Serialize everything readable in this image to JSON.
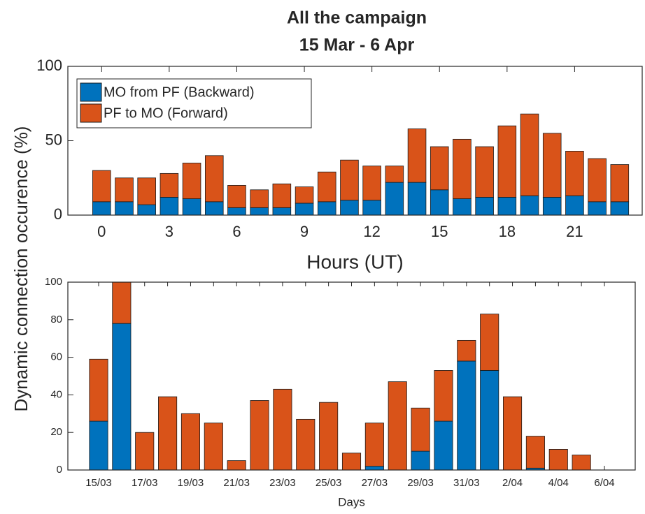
{
  "chart_data": [
    {
      "type": "bar",
      "stacked": true,
      "title": "All the campaign",
      "subtitle": "15 Mar - 6 Apr",
      "ylabel": "Dynamic connection occurence (%)",
      "xlabel": "Hours (UT)",
      "legend": "upper left",
      "x": [
        0,
        1,
        2,
        3,
        4,
        5,
        6,
        7,
        8,
        9,
        10,
        11,
        12,
        13,
        14,
        15,
        16,
        17,
        18,
        19,
        20,
        21,
        22,
        23
      ],
      "xlim": [
        -1.5,
        24
      ],
      "xticks": [
        0,
        3,
        6,
        9,
        12,
        15,
        18,
        21
      ],
      "ylim": [
        0,
        100
      ],
      "yticks": [
        0,
        50,
        100
      ],
      "series": [
        {
          "name": "MO from PF (Backward)",
          "color": "#0072BD",
          "values": [
            9,
            9,
            7,
            12,
            11,
            9,
            5,
            5,
            5,
            8,
            9,
            10,
            10,
            22,
            22,
            17,
            11,
            12,
            12,
            13,
            12,
            13,
            9,
            9
          ]
        },
        {
          "name": "PF to MO (Forward)",
          "color": "#D95319",
          "values": [
            21,
            16,
            18,
            16,
            24,
            31,
            15,
            12,
            16,
            11,
            20,
            27,
            23,
            11,
            36,
            29,
            40,
            34,
            48,
            55,
            43,
            30,
            29,
            25
          ]
        }
      ]
    },
    {
      "type": "bar",
      "stacked": true,
      "xlabel": "Days",
      "categories": [
        "15/03",
        null,
        "17/03",
        null,
        "19/03",
        null,
        "21/03",
        null,
        "23/03",
        null,
        "25/03",
        null,
        "27/03",
        null,
        "29/03",
        null,
        "31/03",
        null,
        "2/04",
        null,
        "4/04",
        null,
        "6/04"
      ],
      "ylim": [
        0,
        100
      ],
      "yticks": [
        0,
        20,
        40,
        60,
        80,
        100
      ],
      "series": [
        {
          "name": "MO from PF (Backward)",
          "color": "#0072BD",
          "values": [
            26,
            78,
            0,
            0,
            0,
            0,
            0,
            0,
            0,
            0,
            0,
            0,
            2,
            0,
            10,
            26,
            58,
            53,
            0,
            1,
            0,
            0,
            null
          ]
        },
        {
          "name": "PF to MO (Forward)",
          "color": "#D95319",
          "values": [
            33,
            22,
            20,
            39,
            30,
            25,
            5,
            37,
            43,
            27,
            36,
            9,
            23,
            47,
            23,
            27,
            11,
            30,
            39,
            17,
            11,
            8,
            null
          ]
        }
      ]
    }
  ]
}
